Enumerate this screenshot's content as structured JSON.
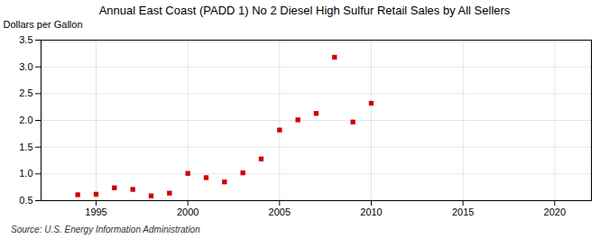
{
  "chart_data": {
    "type": "scatter",
    "title": "Annual East Coast (PADD 1) No 2 Diesel High Sulfur Retail Sales by All Sellers",
    "ylabel": "Dollars per Gallon",
    "source": "Source: U.S. Energy Information Administration",
    "x": [
      1994,
      1995,
      1996,
      1997,
      1998,
      1999,
      2000,
      2001,
      2002,
      2003,
      2004,
      2005,
      2006,
      2007,
      2008,
      2009,
      2010
    ],
    "values": [
      0.61,
      0.62,
      0.74,
      0.71,
      0.59,
      0.64,
      1.01,
      0.93,
      0.85,
      1.02,
      1.28,
      1.82,
      2.01,
      2.13,
      3.18,
      1.97,
      2.32
    ],
    "color": "#cc0000",
    "marker": "square",
    "xlim": [
      1992,
      2022
    ],
    "ylim": [
      0.5,
      3.5
    ],
    "xticks": [
      1995,
      2000,
      2005,
      2010,
      2015,
      2020
    ],
    "yticks": [
      0.5,
      {
        "value": 1,
        "label": "1.0"
      },
      1.5,
      {
        "value": 2,
        "label": "2.0"
      },
      2.5,
      {
        "value": 3,
        "label": "3.0"
      },
      3.5
    ],
    "grid": true
  }
}
